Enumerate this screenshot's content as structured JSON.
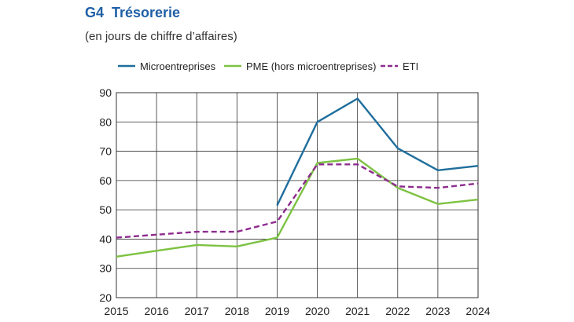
{
  "header": {
    "figure_number": "G4",
    "title": "Trésorerie",
    "subtitle": "(en jours de chiffre d’affaires)"
  },
  "chart_data": {
    "type": "line",
    "title": "Trésorerie",
    "subtitle": "(en jours de chiffre d’affaires)",
    "xlabel": "",
    "ylabel": "",
    "x": [
      2015,
      2016,
      2017,
      2018,
      2019,
      2020,
      2021,
      2022,
      2023,
      2024
    ],
    "x_tick_labels": [
      "2015",
      "2016",
      "2017",
      "2018",
      "2019",
      "2020",
      "2021",
      "2022",
      "2023",
      "2024"
    ],
    "ylim": [
      20,
      90
    ],
    "y_ticks": [
      20,
      30,
      40,
      50,
      60,
      70,
      80,
      90
    ],
    "grid": true,
    "legend_position": "top",
    "series": [
      {
        "name": "Microentreprises",
        "color": "#1f6e9c",
        "style": "solid",
        "values": [
          null,
          null,
          null,
          null,
          51.5,
          80,
          88,
          71,
          63.5,
          65
        ]
      },
      {
        "name": "PME (hors microentreprises)",
        "color": "#7dc242",
        "style": "solid",
        "values": [
          34,
          36,
          38,
          37.5,
          40.5,
          66,
          67.5,
          57.5,
          52,
          53.5
        ]
      },
      {
        "name": "ETI",
        "color": "#8e2c8e",
        "style": "dashed",
        "values": [
          40.5,
          41.5,
          42.5,
          42.5,
          46,
          65.5,
          65.5,
          58,
          57.5,
          59
        ]
      }
    ]
  }
}
